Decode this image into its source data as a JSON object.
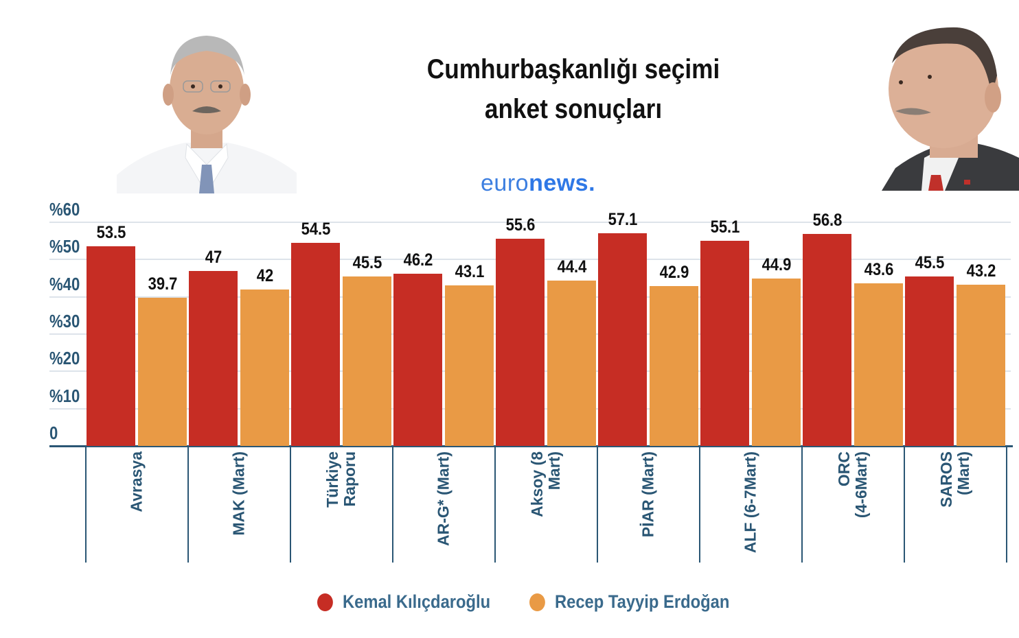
{
  "header": {
    "title_line1": "Cumhurbaşkanlığı seçimi",
    "title_line2": "anket sonuçları",
    "logo_light": "euro",
    "logo_bold": "news",
    "logo_dot": "."
  },
  "photos": {
    "left": "portrait-kemal-kilicdaroglu",
    "right": "portrait-recep-tayyip-erdogan"
  },
  "colors": {
    "kilicdaroglu": "#c62d24",
    "erdogan": "#e99a45",
    "axis": "#2a5674",
    "legend_text": "#3a6a8c",
    "logo": "#2f78e6"
  },
  "y_axis": {
    "ticks": [
      "%60",
      "%50",
      "%40",
      "%30",
      "%20",
      "%10",
      "0"
    ]
  },
  "legend": {
    "items": [
      {
        "label": "Kemal Kılıçdaroğlu",
        "color": "#c62d24"
      },
      {
        "label": "Recep Tayyip Erdoğan",
        "color": "#e99a45"
      }
    ]
  },
  "chart_data": {
    "type": "bar",
    "title": "Cumhurbaşkanlığı seçimi anket sonuçları",
    "xlabel": "",
    "ylabel": "",
    "ylim": [
      0,
      60
    ],
    "y_ticks": [
      "0",
      "%10",
      "%20",
      "%30",
      "%40",
      "%50",
      "%60"
    ],
    "grid": true,
    "legend_position": "bottom",
    "categories": [
      "Avrasya",
      "MAK (Mart)",
      "Türkiye Raporu",
      "AR-G* (Mart)",
      "Aksoy (8 Mart)",
      "PİAR (Mart)",
      "ALF (6-7Mart)",
      "ORC (4-6Mart)",
      "SAROS (Mart)"
    ],
    "category_lines": [
      [
        "Avrasya"
      ],
      [
        "MAK (Mart)"
      ],
      [
        "Türkiye",
        "Raporu"
      ],
      [
        "AR-G* (Mart)"
      ],
      [
        "Aksoy (8",
        "Mart)"
      ],
      [
        "PİAR (Mart)"
      ],
      [
        "ALF (6-7Mart)"
      ],
      [
        "ORC",
        "(4-6Mart)"
      ],
      [
        "SAROS",
        "(Mart)"
      ]
    ],
    "series": [
      {
        "name": "Kemal Kılıçdaroğlu",
        "color": "#c62d24",
        "values": [
          53.5,
          47,
          54.5,
          46.2,
          55.6,
          57.1,
          55.1,
          56.8,
          45.5
        ],
        "labels": [
          "53.5",
          "47",
          "54.5",
          "46.2",
          "55.6",
          "57.1",
          "55.1",
          "56.8",
          "45.5"
        ]
      },
      {
        "name": "Recep Tayyip Erdoğan",
        "color": "#e99a45",
        "values": [
          39.7,
          42,
          45.5,
          43.1,
          44.4,
          42.9,
          44.9,
          43.6,
          43.2
        ],
        "labels": [
          "39.7",
          "42",
          "45.5",
          "43.1",
          "44.4",
          "42.9",
          "44.9",
          "43.6",
          "43.2"
        ]
      }
    ]
  }
}
